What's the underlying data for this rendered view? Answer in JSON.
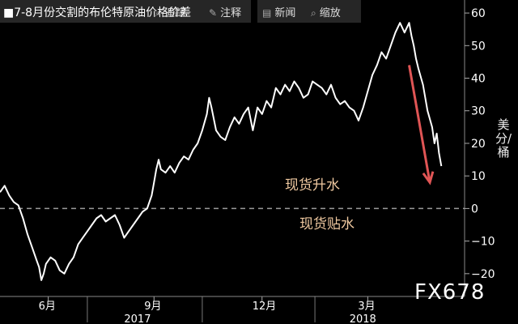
{
  "header": {
    "title": "■7-8月份交割的布伦特原油价格价差",
    "tools": [
      {
        "icon": "magnify-icon",
        "glyph": "⌕",
        "label": "追踪"
      },
      {
        "icon": "note-icon",
        "glyph": "✎",
        "label": "注释"
      },
      {
        "icon": "news-icon",
        "glyph": "▤",
        "label": "新闻"
      },
      {
        "icon": "zoom-icon",
        "glyph": "⌕",
        "label": "缩放"
      }
    ]
  },
  "annotations": {
    "contango_label": "现货升水",
    "backwardation_label": "现货贴水"
  },
  "brand": "FX678",
  "chart_data": {
    "type": "line",
    "ylabel": "美分/桶",
    "ylim": [
      -27,
      64
    ],
    "yticks": [
      -20,
      -10,
      0,
      10,
      20,
      30,
      40,
      50,
      60
    ],
    "x_range": [
      0,
      100
    ],
    "x_ticks": [
      {
        "x": 10.5,
        "label": "6月"
      },
      {
        "x": 33.5,
        "label": "9月"
      },
      {
        "x": 57,
        "label": "12月"
      },
      {
        "x": 80,
        "label": "3月"
      }
    ],
    "year_labels": [
      {
        "x": 30,
        "label": "2017"
      },
      {
        "x": 79,
        "label": "2018"
      }
    ],
    "zero_line": {
      "y": 0,
      "style": "dashed"
    },
    "arrow": {
      "from": [
        89,
        44
      ],
      "to": [
        93.5,
        8
      ],
      "color": "#e05555"
    },
    "colors": {
      "line": "#ffffff",
      "axis_text": "#ffffff",
      "grid_zero": "#9a9a9a",
      "arrow": "#e05555"
    },
    "series": [
      {
        "values": [
          [
            0,
            5
          ],
          [
            1,
            7
          ],
          [
            2,
            4
          ],
          [
            3,
            2
          ],
          [
            4,
            1
          ],
          [
            5,
            -3
          ],
          [
            6,
            -8
          ],
          [
            7,
            -12
          ],
          [
            8,
            -16
          ],
          [
            8.5,
            -18
          ],
          [
            9,
            -22
          ],
          [
            9.5,
            -20
          ],
          [
            10,
            -17
          ],
          [
            11,
            -15
          ],
          [
            12,
            -16
          ],
          [
            13,
            -19
          ],
          [
            14,
            -20
          ],
          [
            15,
            -17
          ],
          [
            16,
            -15
          ],
          [
            17,
            -11
          ],
          [
            18,
            -9
          ],
          [
            19,
            -7
          ],
          [
            20,
            -5
          ],
          [
            21,
            -3
          ],
          [
            22,
            -2
          ],
          [
            23,
            -4
          ],
          [
            24,
            -3
          ],
          [
            25,
            -2
          ],
          [
            26,
            -5
          ],
          [
            27,
            -9
          ],
          [
            28,
            -7
          ],
          [
            29,
            -5
          ],
          [
            30,
            -3
          ],
          [
            31,
            -1
          ],
          [
            32,
            0
          ],
          [
            33,
            4
          ],
          [
            33.5,
            8
          ],
          [
            34,
            12
          ],
          [
            34.5,
            15
          ],
          [
            35,
            12
          ],
          [
            36,
            11
          ],
          [
            37,
            13
          ],
          [
            38,
            11
          ],
          [
            39,
            14
          ],
          [
            40,
            16
          ],
          [
            41,
            15
          ],
          [
            42,
            18
          ],
          [
            43,
            20
          ],
          [
            44,
            24
          ],
          [
            45,
            29
          ],
          [
            45.5,
            34
          ],
          [
            46,
            31
          ],
          [
            47,
            24
          ],
          [
            48,
            22
          ],
          [
            49,
            21
          ],
          [
            50,
            25
          ],
          [
            51,
            28
          ],
          [
            52,
            26
          ],
          [
            53,
            29
          ],
          [
            54,
            31
          ],
          [
            55,
            24
          ],
          [
            56,
            31
          ],
          [
            57,
            29
          ],
          [
            58,
            33
          ],
          [
            59,
            31
          ],
          [
            60,
            37
          ],
          [
            61,
            35
          ],
          [
            62,
            38
          ],
          [
            63,
            36
          ],
          [
            64,
            39
          ],
          [
            65,
            37
          ],
          [
            66,
            34
          ],
          [
            67,
            35
          ],
          [
            68,
            39
          ],
          [
            69,
            38
          ],
          [
            70,
            37
          ],
          [
            71,
            35
          ],
          [
            72,
            38
          ],
          [
            73,
            34
          ],
          [
            74,
            32
          ],
          [
            75,
            33
          ],
          [
            76,
            31
          ],
          [
            77,
            30
          ],
          [
            78,
            27
          ],
          [
            79,
            31
          ],
          [
            80,
            36
          ],
          [
            81,
            41
          ],
          [
            82,
            44
          ],
          [
            83,
            48
          ],
          [
            84,
            46
          ],
          [
            85,
            50
          ],
          [
            86,
            54
          ],
          [
            87,
            57
          ],
          [
            88,
            54
          ],
          [
            89,
            57
          ],
          [
            89.5,
            53
          ],
          [
            90,
            50
          ],
          [
            90.5,
            46
          ],
          [
            91,
            43
          ],
          [
            92,
            38
          ],
          [
            93,
            30
          ],
          [
            94,
            25
          ],
          [
            94.5,
            20
          ],
          [
            95,
            23
          ],
          [
            95.5,
            17
          ],
          [
            96,
            13
          ]
        ]
      }
    ]
  }
}
